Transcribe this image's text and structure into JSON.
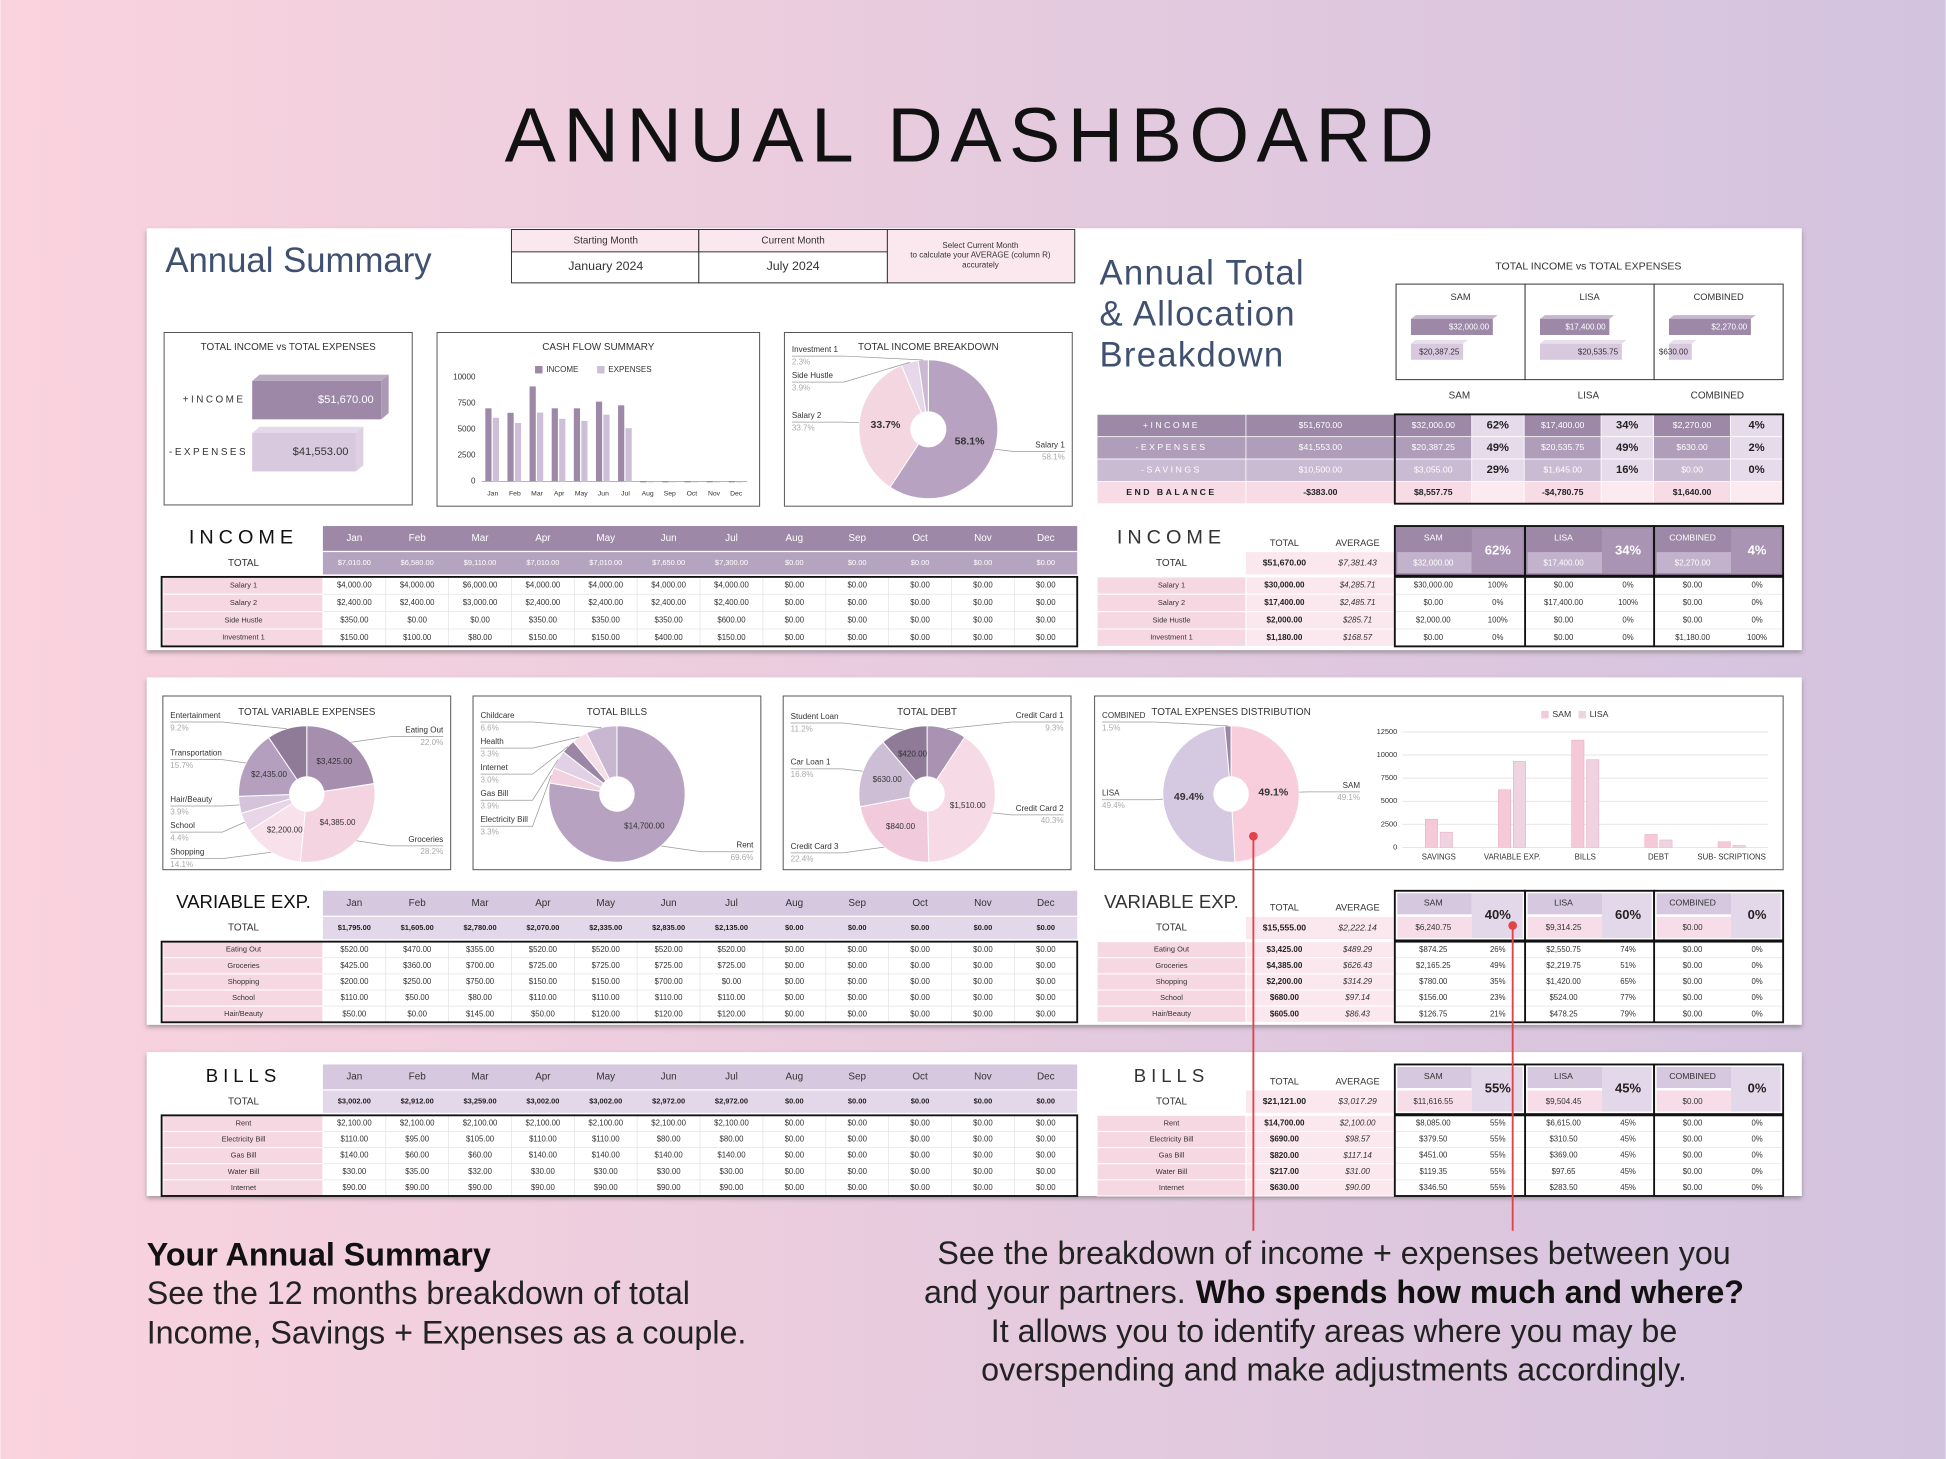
{
  "title": "ANNUAL DASHBOARD",
  "summary": {
    "heading": "Annual Summary",
    "start_label": "Starting Month",
    "start_value": "January  2024",
    "current_label": "Current Month",
    "current_value": "July  2024",
    "note": [
      "Select Current Month",
      "to calculate your AVERAGE (column R)",
      "accurately"
    ]
  },
  "allocation_heading": [
    "Annual Total",
    "& Allocation",
    "Breakdown"
  ],
  "people": [
    "SAM",
    "LISA",
    "COMBINED"
  ],
  "total_label": "TOTAL",
  "average_label": "AVERAGE",
  "chart_data": [
    {
      "type": "hbar",
      "title": "TOTAL INCOME vs TOTAL EXPENSES",
      "categories": [
        "+INCOME",
        "-EXPENSES"
      ],
      "values": [
        51670,
        41553
      ],
      "value_labels": [
        "$51,670.00",
        "$41,553.00"
      ],
      "colors": [
        "#9d88a8",
        "#d9c9df"
      ]
    },
    {
      "type": "bar",
      "title": "CASH FLOW SUMMARY",
      "categories": [
        "Jan",
        "Feb",
        "Mar",
        "Apr",
        "May",
        "Jun",
        "Jul",
        "Aug",
        "Sep",
        "Oct",
        "Nov",
        "Dec"
      ],
      "series": [
        {
          "name": "INCOME",
          "color": "#9d88a8",
          "values": [
            7010,
            6580,
            9110,
            7010,
            7010,
            7650,
            7300,
            0,
            0,
            0,
            0,
            0
          ]
        },
        {
          "name": "EXPENSES",
          "color": "#cdbfd8",
          "values": [
            6100,
            5600,
            6600,
            6000,
            5800,
            6400,
            5100,
            0,
            0,
            0,
            0,
            0
          ]
        }
      ],
      "ylim": [
        0,
        10000
      ],
      "yticks": [
        0,
        2500,
        5000,
        7500,
        10000
      ]
    },
    {
      "type": "pie",
      "title": "TOTAL INCOME BREAKDOWN",
      "categories": [
        "Salary 1",
        "Salary 2",
        "Side Hustle",
        "Investment 1"
      ],
      "values": [
        58.1,
        33.7,
        3.9,
        2.3
      ],
      "value_labels": [
        "58.1%",
        "33.7%",
        "3.9%",
        "2.3%"
      ],
      "colors": [
        "#b8a2c2",
        "#f4d6e1",
        "#e6d8e8",
        "#cbb9d3"
      ]
    },
    {
      "type": "group-bar",
      "title": "TOTAL INCOME  vs  TOTAL EXPENSES",
      "categories": [
        "SAM",
        "LISA",
        "COMBINED"
      ],
      "series": [
        {
          "color": "#9d88a8",
          "values": [
            32000,
            17400,
            2270
          ],
          "value_labels": [
            "$32,000.00",
            "$17,400.00",
            "$2,270.00"
          ]
        },
        {
          "color": "#d9c9df",
          "values": [
            20387.25,
            20535.75,
            630
          ],
          "value_labels": [
            "$20,387.25",
            "$20,535.75",
            "$630.00"
          ]
        }
      ]
    },
    {
      "type": "pie",
      "title": "TOTAL VARIABLE EXPENSES",
      "categories": [
        "Eating Out",
        "Groceries",
        "Shopping",
        "School",
        "Hair/Beauty",
        "Transportation",
        "Entertainment"
      ],
      "values": [
        22.0,
        28.2,
        14.1,
        4.4,
        3.9,
        15.7,
        9.2
      ],
      "value_labels": [
        "22.0%",
        "28.2%",
        "14.1%",
        "4.4%",
        "3.9%",
        "15.7%",
        "9.2%"
      ],
      "inner_labels": [
        "$3,425.00",
        "$4,385.00",
        "$2,200.00",
        null,
        null,
        "$2,435.00",
        null
      ],
      "colors": [
        "#a68eaf",
        "#f4d4e0",
        "#f8e1ea",
        "#e8d5e7",
        "#d5c3dc",
        "#b49fbf",
        "#8f7a98"
      ]
    },
    {
      "type": "pie",
      "title": "TOTAL BILLS",
      "categories": [
        "Rent",
        "Electricity Bill",
        "Gas Bill",
        "Internet",
        "Health",
        "Childcare"
      ],
      "values": [
        69.6,
        3.3,
        3.9,
        3.0,
        3.3,
        6.6
      ],
      "value_labels": [
        "69.6%",
        "3.3%",
        "3.9%",
        "3.0%",
        "3.3%",
        "6.6%"
      ],
      "inner_labels": [
        "$14,700.00",
        null,
        null,
        null,
        null,
        null
      ],
      "colors": [
        "#b7a2c1",
        "#f2d2df",
        "#e2d0e5",
        "#9b86a5",
        "#f6dee8",
        "#c9b6d0"
      ]
    },
    {
      "type": "pie",
      "title": "TOTAL DEBT",
      "categories": [
        "Credit Card 1",
        "Credit Card 2",
        "Credit Card 3",
        "Car Loan 1",
        "Student Loan"
      ],
      "values": [
        9.3,
        40.3,
        22.4,
        16.8,
        11.2
      ],
      "value_labels": [
        "9.3%",
        "40.3%",
        "22.4%",
        "16.8%",
        "11.2%"
      ],
      "inner_labels": [
        null,
        "$1,510.00",
        "$840.00",
        "$630.00",
        "$420.00"
      ],
      "colors": [
        "#a992b2",
        "#f6dbe6",
        "#f1cbdc",
        "#cdbed6",
        "#8f7a98"
      ]
    },
    {
      "type": "pie",
      "title": "TOTAL EXPENSES DISTRIBUTION",
      "categories": [
        "SAM",
        "LISA",
        "COMBINED"
      ],
      "values": [
        49.1,
        49.4,
        1.5
      ],
      "value_labels": [
        "49.1%",
        "49.4%",
        "1.5%"
      ],
      "colors": [
        "#f8cddc",
        "#d5c8e1",
        "#9b86a5"
      ]
    },
    {
      "type": "bar",
      "categories": [
        "SAVINGS",
        "VARIABLE EXP.",
        "BILLS",
        "DEBT",
        "SUB- SCRIPTIONS"
      ],
      "series": [
        {
          "name": "SAM",
          "color": "#f5c9d8",
          "values": [
            3055,
            6241,
            11617,
            1400,
            600
          ]
        },
        {
          "name": "LISA",
          "color": "#efd3e0",
          "values": [
            1645,
            9314,
            9504,
            800,
            200
          ]
        }
      ],
      "ylim": [
        0,
        12500
      ],
      "yticks": [
        0,
        2500,
        5000,
        7500,
        10000,
        12500
      ],
      "grid": true
    }
  ],
  "allocation": [
    {
      "label": "+INCOME",
      "total": "$51,670.00",
      "cells": [
        [
          "$32,000.00",
          "62%"
        ],
        [
          "$17,400.00",
          "34%"
        ],
        [
          "$2,270.00",
          "4%"
        ]
      ]
    },
    {
      "label": "-EXPENSES",
      "total": "$41,553.00",
      "cells": [
        [
          "$20,387.25",
          "49%"
        ],
        [
          "$20,535.75",
          "49%"
        ],
        [
          "$630.00",
          "2%"
        ]
      ]
    },
    {
      "label": "-SAVINGS",
      "total": "$10,500.00",
      "cells": [
        [
          "$3,055.00",
          "29%"
        ],
        [
          "$1,645.00",
          "16%"
        ],
        [
          "$0.00",
          "0%"
        ]
      ]
    },
    {
      "label": "END BALANCE",
      "total": "-$383.00",
      "cells": [
        [
          "$8,557.75"
        ],
        [
          "-$4,780.75"
        ],
        [
          "$1,640.00"
        ]
      ]
    }
  ],
  "sections": [
    {
      "title": "INCOME",
      "totals": [
        "$7,010.00",
        "$6,580.00",
        "$9,110.00",
        "$7,010.00",
        "$7,010.00",
        "$7,650.00",
        "$7,300.00",
        "$0.00",
        "$0.00",
        "$0.00",
        "$0.00",
        "$0.00"
      ],
      "rows": [
        {
          "label": "Salary 1",
          "values": [
            "$4,000.00",
            "$4,000.00",
            "$6,000.00",
            "$4,000.00",
            "$4,000.00",
            "$4,000.00",
            "$4,000.00",
            "$0.00",
            "$0.00",
            "$0.00",
            "$0.00",
            "$0.00"
          ]
        },
        {
          "label": "Salary 2",
          "values": [
            "$2,400.00",
            "$2,400.00",
            "$3,000.00",
            "$2,400.00",
            "$2,400.00",
            "$2,400.00",
            "$2,400.00",
            "$0.00",
            "$0.00",
            "$0.00",
            "$0.00",
            "$0.00"
          ]
        },
        {
          "label": "Side Hustle",
          "values": [
            "$350.00",
            "$0.00",
            "$0.00",
            "$350.00",
            "$350.00",
            "$350.00",
            "$600.00",
            "$0.00",
            "$0.00",
            "$0.00",
            "$0.00",
            "$0.00"
          ]
        },
        {
          "label": "Investment 1",
          "values": [
            "$150.00",
            "$100.00",
            "$80.00",
            "$150.00",
            "$150.00",
            "$400.00",
            "$150.00",
            "$0.00",
            "$0.00",
            "$0.00",
            "$0.00",
            "$0.00"
          ]
        }
      ],
      "right": {
        "total": "$51,670.00",
        "average": "$7,381.43",
        "cells": [
          [
            "$32,000.00",
            "62%"
          ],
          [
            "$17,400.00",
            "34%"
          ],
          [
            "$2,270.00",
            "4%"
          ]
        ],
        "rows": [
          [
            "$30,000.00",
            "$4,285.71",
            "$30,000.00",
            "100%",
            "$0.00",
            "0%",
            "$0.00",
            "0%"
          ],
          [
            "$17,400.00",
            "$2,485.71",
            "$0.00",
            "0%",
            "$17,400.00",
            "100%",
            "$0.00",
            "0%"
          ],
          [
            "$2,000.00",
            "$285.71",
            "$2,000.00",
            "100%",
            "$0.00",
            "0%",
            "$0.00",
            "0%"
          ],
          [
            "$1,180.00",
            "$168.57",
            "$0.00",
            "0%",
            "$0.00",
            "0%",
            "$1,180.00",
            "100%"
          ]
        ]
      }
    },
    {
      "title": "VARIABLE EXP.",
      "totals": [
        "$1,795.00",
        "$1,605.00",
        "$2,780.00",
        "$2,070.00",
        "$2,335.00",
        "$2,835.00",
        "$2,135.00",
        "$0.00",
        "$0.00",
        "$0.00",
        "$0.00",
        "$0.00"
      ],
      "rows": [
        {
          "label": "Eating Out",
          "values": [
            "$520.00",
            "$470.00",
            "$355.00",
            "$520.00",
            "$520.00",
            "$520.00",
            "$520.00",
            "$0.00",
            "$0.00",
            "$0.00",
            "$0.00",
            "$0.00"
          ]
        },
        {
          "label": "Groceries",
          "values": [
            "$425.00",
            "$360.00",
            "$700.00",
            "$725.00",
            "$725.00",
            "$725.00",
            "$725.00",
            "$0.00",
            "$0.00",
            "$0.00",
            "$0.00",
            "$0.00"
          ]
        },
        {
          "label": "Shopping",
          "values": [
            "$200.00",
            "$250.00",
            "$750.00",
            "$150.00",
            "$150.00",
            "$700.00",
            "$0.00",
            "$0.00",
            "$0.00",
            "$0.00",
            "$0.00",
            "$0.00"
          ]
        },
        {
          "label": "School",
          "values": [
            "$110.00",
            "$50.00",
            "$80.00",
            "$110.00",
            "$110.00",
            "$110.00",
            "$110.00",
            "$0.00",
            "$0.00",
            "$0.00",
            "$0.00",
            "$0.00"
          ]
        },
        {
          "label": "Hair/Beauty",
          "values": [
            "$50.00",
            "$0.00",
            "$145.00",
            "$50.00",
            "$120.00",
            "$120.00",
            "$120.00",
            "$0.00",
            "$0.00",
            "$0.00",
            "$0.00",
            "$0.00"
          ]
        }
      ],
      "right": {
        "total": "$15,555.00",
        "average": "$2,222.14",
        "cells": [
          [
            "$6,240.75",
            "40%"
          ],
          [
            "$9,314.25",
            "60%"
          ],
          [
            "$0.00",
            "0%"
          ]
        ],
        "rows": [
          [
            "$3,425.00",
            "$489.29",
            "$874.25",
            "26%",
            "$2,550.75",
            "74%",
            "$0.00",
            "0%"
          ],
          [
            "$4,385.00",
            "$626.43",
            "$2,165.25",
            "49%",
            "$2,219.75",
            "51%",
            "$0.00",
            "0%"
          ],
          [
            "$2,200.00",
            "$314.29",
            "$780.00",
            "35%",
            "$1,420.00",
            "65%",
            "$0.00",
            "0%"
          ],
          [
            "$680.00",
            "$97.14",
            "$156.00",
            "23%",
            "$524.00",
            "77%",
            "$0.00",
            "0%"
          ],
          [
            "$605.00",
            "$86.43",
            "$126.75",
            "21%",
            "$478.25",
            "79%",
            "$0.00",
            "0%"
          ]
        ]
      }
    },
    {
      "title": "BILLS",
      "totals": [
        "$3,002.00",
        "$2,912.00",
        "$3,259.00",
        "$3,002.00",
        "$3,002.00",
        "$2,972.00",
        "$2,972.00",
        "$0.00",
        "$0.00",
        "$0.00",
        "$0.00",
        "$0.00"
      ],
      "rows": [
        {
          "label": "Rent",
          "values": [
            "$2,100.00",
            "$2,100.00",
            "$2,100.00",
            "$2,100.00",
            "$2,100.00",
            "$2,100.00",
            "$2,100.00",
            "$0.00",
            "$0.00",
            "$0.00",
            "$0.00",
            "$0.00"
          ]
        },
        {
          "label": "Electricity Bill",
          "values": [
            "$110.00",
            "$95.00",
            "$105.00",
            "$110.00",
            "$110.00",
            "$80.00",
            "$80.00",
            "$0.00",
            "$0.00",
            "$0.00",
            "$0.00",
            "$0.00"
          ]
        },
        {
          "label": "Gas Bill",
          "values": [
            "$140.00",
            "$60.00",
            "$60.00",
            "$140.00",
            "$140.00",
            "$140.00",
            "$140.00",
            "$0.00",
            "$0.00",
            "$0.00",
            "$0.00",
            "$0.00"
          ]
        },
        {
          "label": "Water Bill",
          "values": [
            "$30.00",
            "$35.00",
            "$32.00",
            "$30.00",
            "$30.00",
            "$30.00",
            "$30.00",
            "$0.00",
            "$0.00",
            "$0.00",
            "$0.00",
            "$0.00"
          ]
        },
        {
          "label": "Internet",
          "values": [
            "$90.00",
            "$90.00",
            "$90.00",
            "$90.00",
            "$90.00",
            "$90.00",
            "$90.00",
            "$0.00",
            "$0.00",
            "$0.00",
            "$0.00",
            "$0.00"
          ]
        }
      ],
      "right": {
        "total": "$21,121.00",
        "average": "$3,017.29",
        "cells": [
          [
            "$11,616.55",
            "55%"
          ],
          [
            "$9,504.45",
            "45%"
          ],
          [
            "$0.00",
            "0%"
          ]
        ],
        "rows": [
          [
            "$14,700.00",
            "$2,100.00",
            "$8,085.00",
            "55%",
            "$6,615.00",
            "45%",
            "$0.00",
            "0%"
          ],
          [
            "$690.00",
            "$98.57",
            "$379.50",
            "55%",
            "$310.50",
            "45%",
            "$0.00",
            "0%"
          ],
          [
            "$820.00",
            "$117.14",
            "$451.00",
            "55%",
            "$369.00",
            "45%",
            "$0.00",
            "0%"
          ],
          [
            "$217.00",
            "$31.00",
            "$119.35",
            "55%",
            "$97.65",
            "45%",
            "$0.00",
            "0%"
          ],
          [
            "$630.00",
            "$90.00",
            "$346.50",
            "55%",
            "$283.50",
            "45%",
            "$0.00",
            "0%"
          ]
        ]
      }
    }
  ],
  "footer": {
    "left_title": "Your Annual Summary",
    "left_lines": [
      "See the 12 months breakdown of total",
      "Income, Savings + Expenses  as a couple."
    ],
    "right_line1": "See the breakdown of income + expenses between you",
    "right_line2": "and your partners.",
    "right_line2_bold": "Who spends how much and where?",
    "right_line3": "It allows you to identify areas where you may be",
    "right_line4": "overspending and make adjustments accordingly."
  }
}
